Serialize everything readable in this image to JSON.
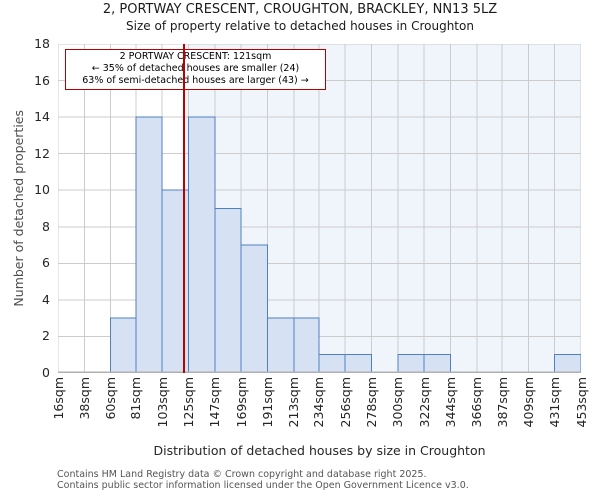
{
  "chart_data": {
    "type": "bar",
    "title": "2, PORTWAY CRESCENT, CROUGHTON, BRACKLEY, NN13 5LZ",
    "subtitle": "Size of property relative to detached houses in Croughton",
    "xlabel": "Distribution of detached houses by size in Croughton",
    "ylabel": "Number of detached properties",
    "bin_edges_sqm": [
      16,
      38,
      60,
      81,
      103,
      125,
      147,
      169,
      191,
      213,
      234,
      256,
      278,
      300,
      322,
      344,
      366,
      387,
      409,
      431,
      453
    ],
    "categories": [
      "16sqm",
      "38sqm",
      "60sqm",
      "81sqm",
      "103sqm",
      "125sqm",
      "147sqm",
      "169sqm",
      "191sqm",
      "213sqm",
      "234sqm",
      "256sqm",
      "278sqm",
      "300sqm",
      "322sqm",
      "344sqm",
      "366sqm",
      "387sqm",
      "409sqm",
      "431sqm",
      "453sqm"
    ],
    "values": [
      0,
      0,
      3,
      14,
      10,
      14,
      9,
      7,
      3,
      3,
      1,
      1,
      0,
      1,
      1,
      0,
      0,
      0,
      0,
      1
    ],
    "ylim": [
      0,
      18
    ],
    "yticks": [
      0,
      2,
      4,
      6,
      8,
      10,
      12,
      14,
      16,
      18
    ],
    "grid": true,
    "legend": false,
    "marker": {
      "value_sqm": 121,
      "color": "#bb0000"
    },
    "shaded_region": {
      "from_sqm": 121,
      "to_sqm": 453,
      "color": "#f0f4fb"
    },
    "annotation": {
      "line1": "2 PORTWAY CRESCENT: 121sqm",
      "line2": "← 35% of detached houses are smaller (24)",
      "line3": "63% of semi-detached houses are larger (43) →"
    },
    "colors": {
      "bar_fill": "#d6e2f4",
      "bar_edge": "#4f81c2",
      "grid": "#cccccc",
      "axis_line": "#b0b0b0",
      "marker_red": "#bb0000"
    }
  },
  "footer": {
    "line1": "Contains HM Land Registry data © Crown copyright and database right 2025.",
    "line2": "Contains public sector information licensed under the Open Government Licence v3.0."
  }
}
